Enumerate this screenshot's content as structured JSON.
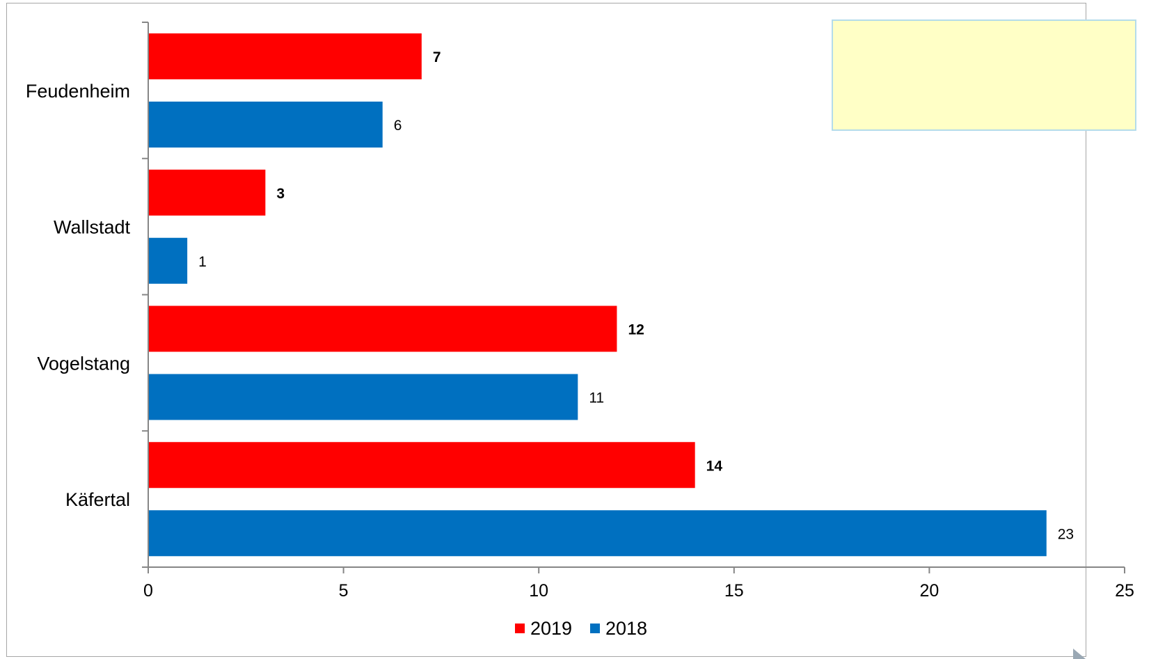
{
  "chart_data": {
    "type": "bar",
    "orientation": "horizontal",
    "categories": [
      "Feudenheim",
      "Wallstadt",
      "Vogelstang",
      "Käfertal"
    ],
    "series": [
      {
        "name": "2019",
        "values": [
          7,
          3,
          12,
          14
        ],
        "color": "#ff0000",
        "label_bold": true
      },
      {
        "name": "2018",
        "values": [
          6,
          1,
          11,
          23
        ],
        "color": "#0070c0",
        "label_bold": false
      }
    ],
    "xlim": [
      0,
      25
    ],
    "xticks": [
      "0",
      "5",
      "10",
      "15",
      "20",
      "25"
    ],
    "grid": false,
    "legend_position": "bottom",
    "note_box_color": "#ffffc6"
  }
}
